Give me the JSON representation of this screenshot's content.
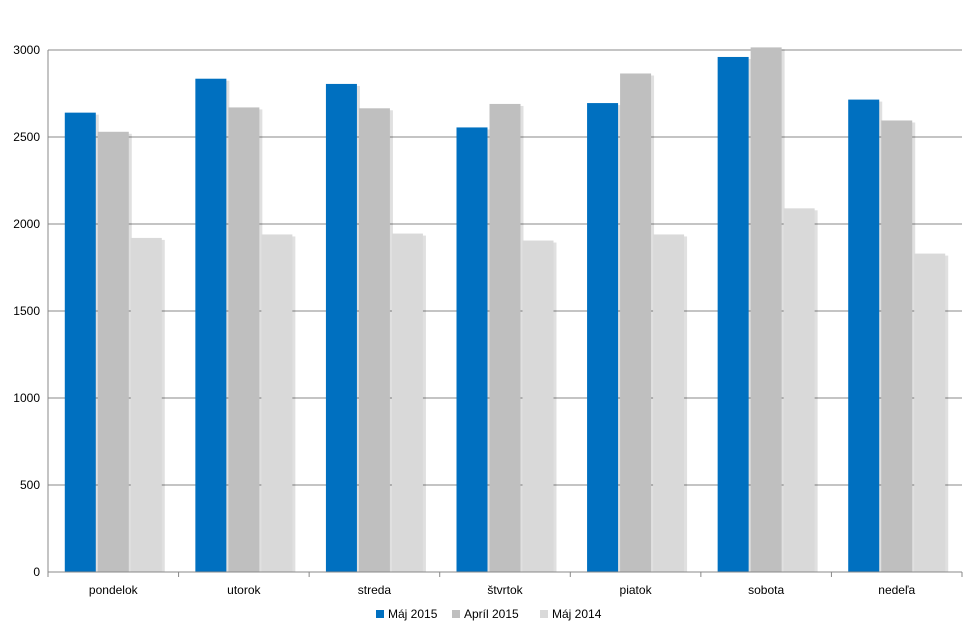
{
  "chart_data": {
    "type": "bar",
    "title": "",
    "xlabel": "",
    "ylabel": "",
    "categories": [
      "pondelok",
      "utorok",
      "streda",
      "štvrtok",
      "piatok",
      "sobota",
      "nedeľa"
    ],
    "series": [
      {
        "name": "Máj 2015",
        "color": "#0070C0",
        "values": [
          2640,
          2835,
          2805,
          2555,
          2695,
          2960,
          2715
        ]
      },
      {
        "name": "Apríl 2015",
        "color": "#BFBFBF",
        "values": [
          2530,
          2670,
          2665,
          2690,
          2865,
          3015,
          2595
        ]
      },
      {
        "name": "Máj 2014",
        "color": "#D9D9D9",
        "values": [
          1920,
          1940,
          1945,
          1905,
          1940,
          2090,
          1830
        ]
      }
    ],
    "ylim": [
      0,
      3000
    ],
    "yticks": [
      0,
      500,
      1000,
      1500,
      2000,
      2500,
      3000
    ],
    "grid": true,
    "legend_position": "bottom"
  }
}
